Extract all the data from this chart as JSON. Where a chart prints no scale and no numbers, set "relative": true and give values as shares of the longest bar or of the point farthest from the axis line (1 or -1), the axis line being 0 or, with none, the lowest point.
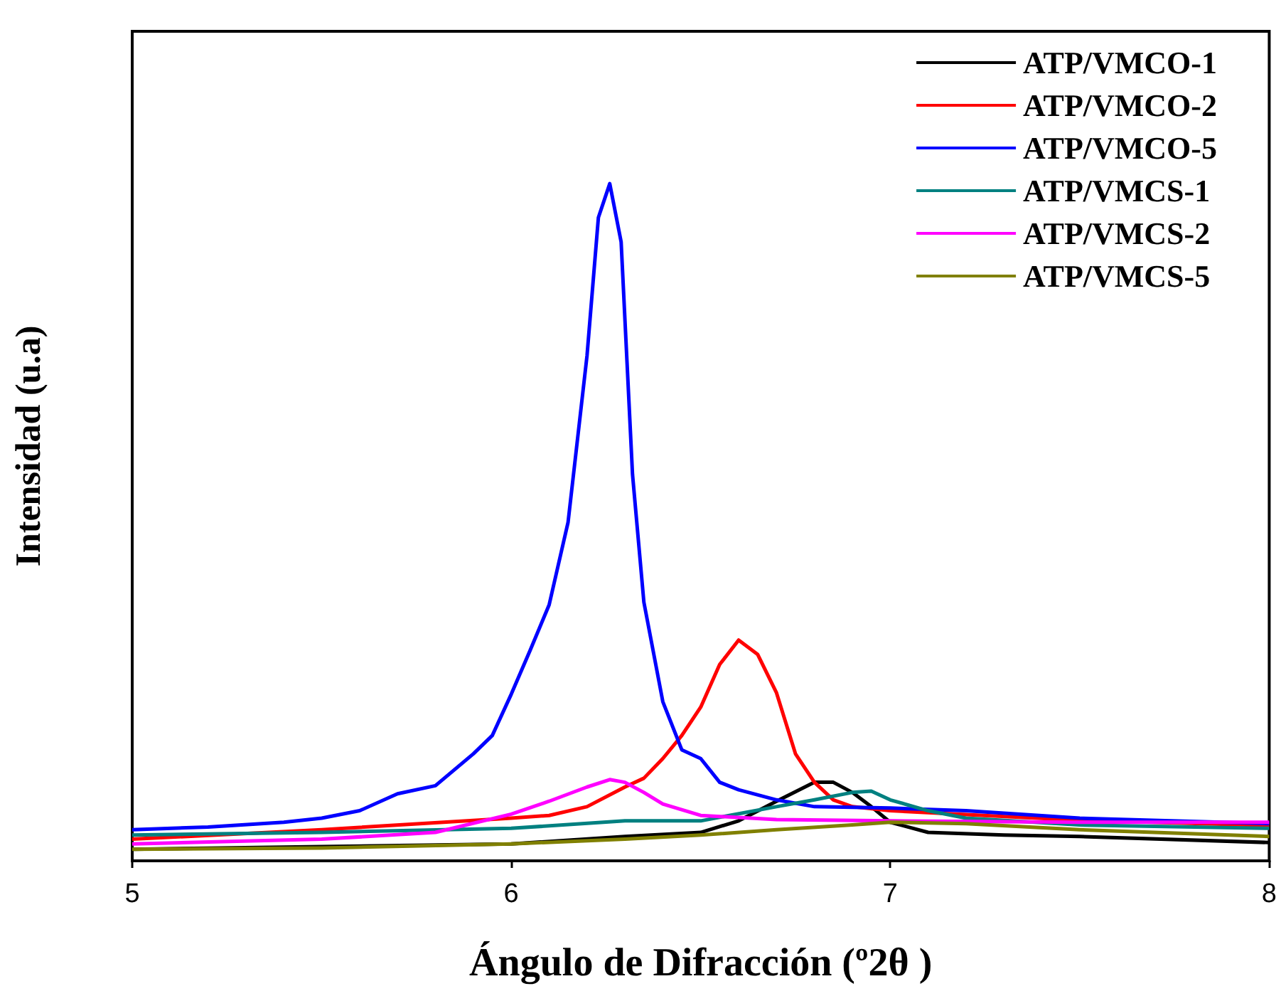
{
  "chart_data": {
    "type": "line",
    "relative": true,
    "xlabel": "Ángulo de Difracción (º2θ )",
    "ylabel": "Intensidad (u.a)",
    "xlim": [
      5,
      8
    ],
    "xticks": [
      5,
      6,
      7,
      8
    ],
    "grid": false,
    "legend": "top right",
    "marker": "none",
    "line_style": "solid",
    "series": [
      {
        "name": "ATP/VMCO-1",
        "color": "#000000",
        "x": [
          5.0,
          5.5,
          6.0,
          6.3,
          6.5,
          6.6,
          6.7,
          6.8,
          6.85,
          6.9,
          6.95,
          7.0,
          7.1,
          7.3,
          7.5,
          8.0
        ],
        "values": [
          0.017,
          0.021,
          0.025,
          0.036,
          0.042,
          0.059,
          0.088,
          0.116,
          0.116,
          0.101,
          0.08,
          0.057,
          0.042,
          0.038,
          0.036,
          0.027
        ]
      },
      {
        "name": "ATP/VMCO-2",
        "color": "#ff0000",
        "x": [
          5.0,
          5.5,
          6.0,
          6.1,
          6.2,
          6.3,
          6.35,
          6.4,
          6.45,
          6.5,
          6.55,
          6.6,
          6.65,
          6.7,
          6.75,
          6.8,
          6.85,
          6.9,
          7.0,
          7.5,
          8.0
        ],
        "values": [
          0.032,
          0.046,
          0.063,
          0.067,
          0.08,
          0.109,
          0.122,
          0.151,
          0.185,
          0.227,
          0.29,
          0.326,
          0.305,
          0.248,
          0.158,
          0.116,
          0.09,
          0.08,
          0.074,
          0.06,
          0.052
        ]
      },
      {
        "name": "ATP/VMCO-5",
        "color": "#0000ff",
        "x": [
          5.0,
          5.2,
          5.4,
          5.5,
          5.6,
          5.7,
          5.8,
          5.9,
          5.95,
          6.0,
          6.05,
          6.1,
          6.15,
          6.2,
          6.23,
          6.26,
          6.29,
          6.32,
          6.35,
          6.4,
          6.45,
          6.5,
          6.55,
          6.6,
          6.7,
          6.8,
          7.0,
          7.2,
          7.5,
          8.0
        ],
        "values": [
          0.046,
          0.05,
          0.057,
          0.063,
          0.074,
          0.099,
          0.111,
          0.158,
          0.185,
          0.246,
          0.311,
          0.378,
          0.5,
          0.746,
          0.95,
          1.0,
          0.914,
          0.571,
          0.382,
          0.235,
          0.164,
          0.151,
          0.116,
          0.105,
          0.09,
          0.08,
          0.078,
          0.074,
          0.063,
          0.055
        ]
      },
      {
        "name": "ATP/VMCS-1",
        "color": "#008080",
        "x": [
          5.0,
          5.5,
          6.0,
          6.3,
          6.5,
          6.7,
          6.8,
          6.9,
          6.95,
          7.0,
          7.1,
          7.2,
          7.5,
          8.0
        ],
        "values": [
          0.038,
          0.042,
          0.048,
          0.059,
          0.059,
          0.08,
          0.09,
          0.101,
          0.103,
          0.09,
          0.074,
          0.063,
          0.053,
          0.048
        ]
      },
      {
        "name": "ATP/VMCS-2",
        "color": "#ff00ff",
        "x": [
          5.0,
          5.5,
          5.8,
          6.0,
          6.1,
          6.2,
          6.26,
          6.3,
          6.35,
          6.4,
          6.5,
          6.7,
          7.0,
          7.5,
          8.0
        ],
        "values": [
          0.025,
          0.032,
          0.042,
          0.069,
          0.088,
          0.109,
          0.12,
          0.116,
          0.101,
          0.084,
          0.067,
          0.061,
          0.059,
          0.057,
          0.057
        ]
      },
      {
        "name": "ATP/VMCS-5",
        "color": "#808000",
        "x": [
          5.0,
          5.5,
          6.0,
          6.3,
          6.5,
          6.7,
          6.9,
          7.0,
          7.2,
          7.5,
          8.0
        ],
        "values": [
          0.017,
          0.019,
          0.025,
          0.032,
          0.038,
          0.046,
          0.053,
          0.057,
          0.055,
          0.046,
          0.036
        ]
      }
    ]
  }
}
